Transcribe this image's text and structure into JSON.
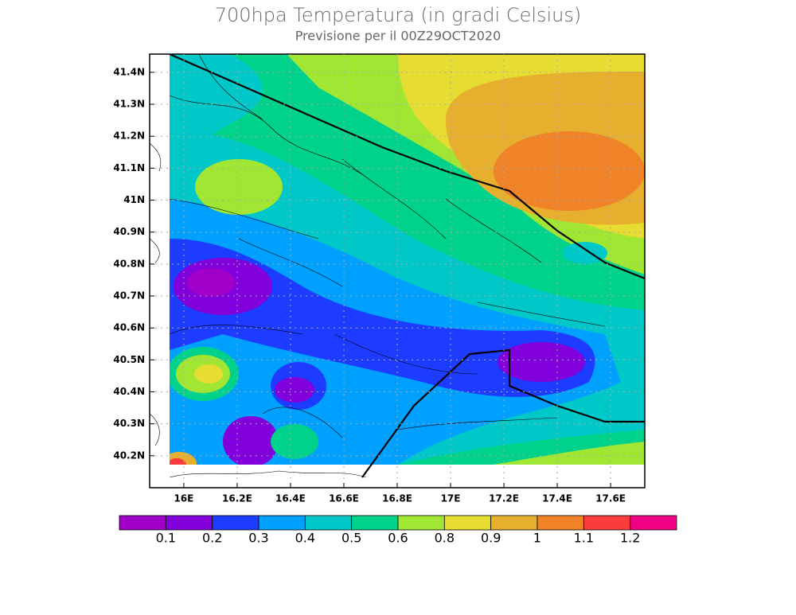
{
  "map": {
    "title": "700hpa Temperatura (in gradi Celsius)",
    "subtitle": "Previsione per il  00Z29OCT2020",
    "xlim": [
      15.872,
      17.728
    ],
    "ylim": [
      40.1,
      41.457
    ],
    "lon_ticks": [
      {
        "value": 16,
        "label": "16E"
      },
      {
        "value": 16.2,
        "label": "16.2E"
      },
      {
        "value": 16.4,
        "label": "16.4E"
      },
      {
        "value": 16.6,
        "label": "16.6E"
      },
      {
        "value": 16.8,
        "label": "16.8E"
      },
      {
        "value": 17,
        "label": "17E"
      },
      {
        "value": 17.2,
        "label": "17.2E"
      },
      {
        "value": 17.4,
        "label": "17.4E"
      },
      {
        "value": 17.6,
        "label": "17.6E"
      }
    ],
    "lat_ticks": [
      {
        "value": 41.4,
        "label": "41.4N"
      },
      {
        "value": 41.3,
        "label": "41.3N"
      },
      {
        "value": 41.2,
        "label": "41.2N"
      },
      {
        "value": 41.1,
        "label": "41.1N"
      },
      {
        "value": 41,
        "label": "41N"
      },
      {
        "value": 40.9,
        "label": "40.9N"
      },
      {
        "value": 40.8,
        "label": "40.8N"
      },
      {
        "value": 40.7,
        "label": "40.7N"
      },
      {
        "value": 40.6,
        "label": "40.6N"
      },
      {
        "value": 40.5,
        "label": "40.5N"
      },
      {
        "value": 40.4,
        "label": "40.4N"
      },
      {
        "value": 40.3,
        "label": "40.3N"
      },
      {
        "value": 40.2,
        "label": "40.2N"
      }
    ],
    "grid": true,
    "legend": {
      "levels": [
        0.1,
        0.2,
        0.3,
        0.4,
        0.5,
        0.6,
        0.8,
        0.9,
        1,
        1.1,
        1.2
      ],
      "colors": [
        "#a000c8",
        "#8200dc",
        "#1e3cff",
        "#00a0ff",
        "#00c8c8",
        "#00d28c",
        "#a0e632",
        "#e6dc32",
        "#e6af2d",
        "#f08228",
        "#fa3c3c",
        "#f00082"
      ]
    }
  }
}
